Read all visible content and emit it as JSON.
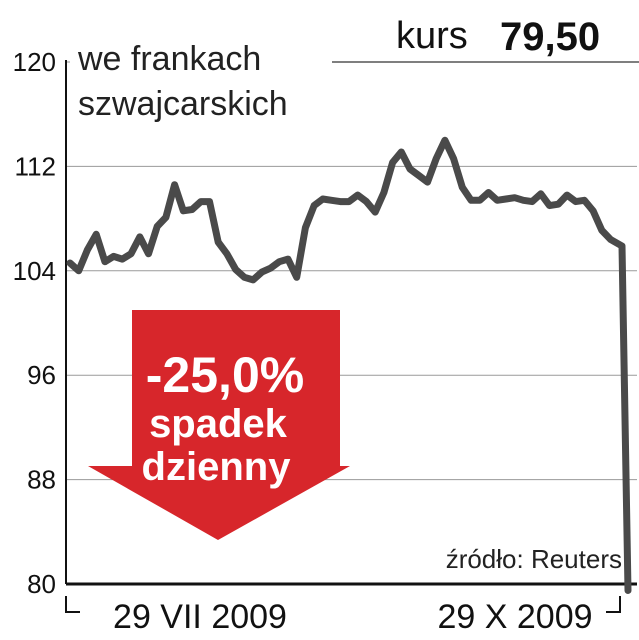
{
  "chart_data": {
    "type": "line",
    "title": "kurs",
    "current_value": "79,50",
    "unit_note": [
      "we frankach",
      "szwajcarskich"
    ],
    "source": "źródło: Reuters",
    "xlabel": "",
    "ylabel": "",
    "ylim": [
      80,
      120
    ],
    "yticks": [
      "120",
      "112",
      "104",
      "96",
      "88",
      "80"
    ],
    "xtick_labels": [
      "29 VII 2009",
      "29 X 2009"
    ],
    "grid": true,
    "line_color": "#4a4a4a",
    "series": [
      {
        "values": [
          104.6,
          104.0,
          105.6,
          106.8,
          104.7,
          105.1,
          104.9,
          105.3,
          106.6,
          105.3,
          107.4,
          108.1,
          110.6,
          108.6,
          108.7,
          109.3,
          109.3,
          106.2,
          105.3,
          104.1,
          103.5,
          103.3,
          103.9,
          104.2,
          104.7,
          104.9,
          103.5,
          107.3,
          109.0,
          109.5,
          109.4,
          109.3,
          109.3,
          109.8,
          109.3,
          108.5,
          110.0,
          112.3,
          113.1,
          111.8,
          111.3,
          110.8,
          112.6,
          114.0,
          112.6,
          110.4,
          109.4,
          109.4,
          110.0,
          109.4,
          109.5,
          109.6,
          109.4,
          109.3,
          109.9,
          109.0,
          109.1,
          109.8,
          109.3,
          109.4,
          108.6,
          107.1,
          106.4,
          105.9,
          79.5
        ]
      }
    ],
    "arrow": {
      "label_lines": [
        "-25,0%",
        "spadek",
        "dzienny"
      ],
      "color": "#d7262b"
    }
  }
}
